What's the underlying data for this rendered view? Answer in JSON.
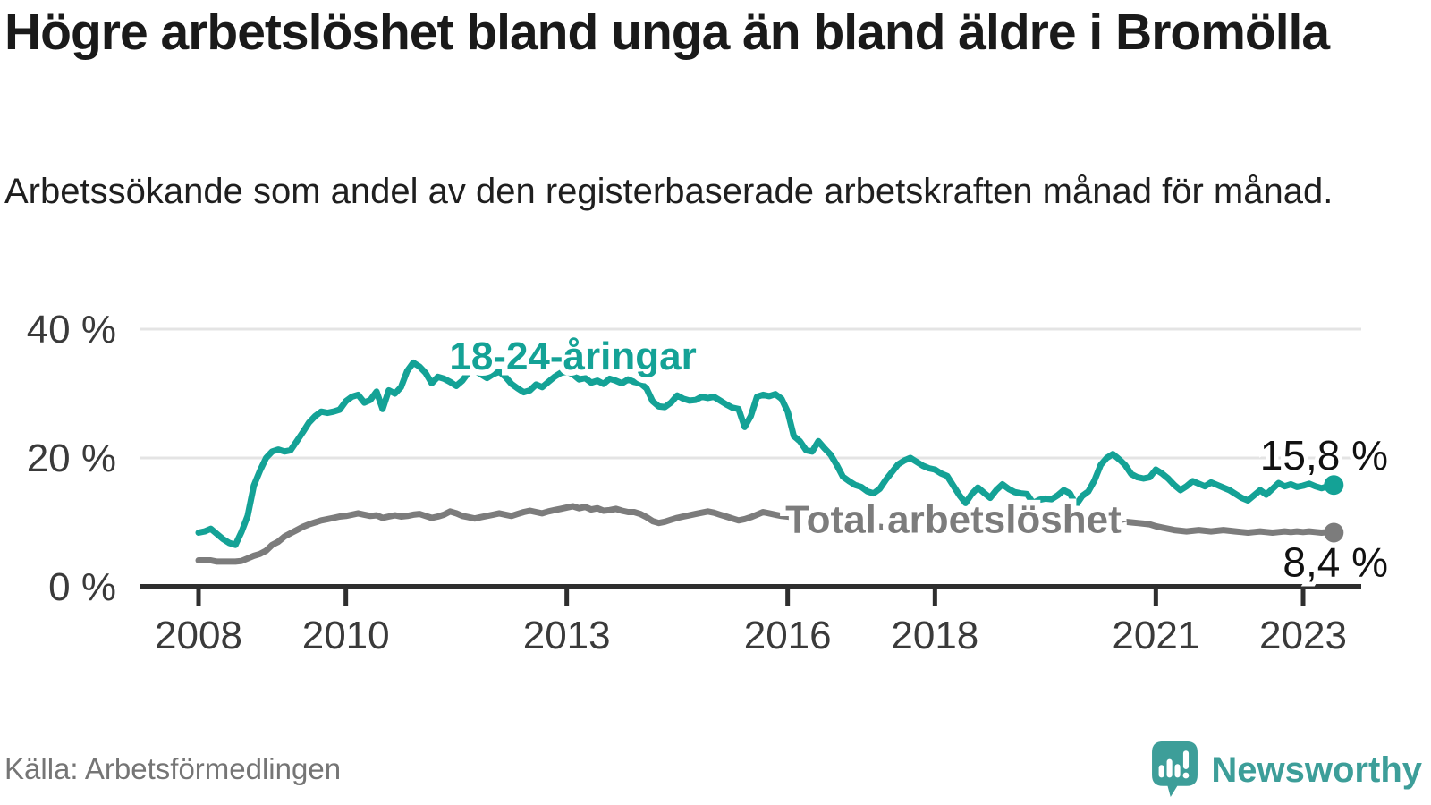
{
  "header": {
    "title": "Högre arbetslöshet bland unga än bland äldre i Bromölla",
    "subtitle": "Arbetssökande som andel av den registerbaserade arbetskraften månad för månad."
  },
  "footer": {
    "source": "Källa: Arbetsförmedlingen",
    "brand": "Newsworthy",
    "logo_icon": "newsworthy-chart-bubble-icon"
  },
  "colors": {
    "youth_line": "#14a296",
    "total_line": "#7c7c7c",
    "axis": "#2e2e2e",
    "tick_text": "#3a3a3a",
    "gridline": "#e4e4e4",
    "value_label_text": "#111111",
    "brand_teal": "#3d9e99"
  },
  "chart_data": {
    "type": "line",
    "title": "Högre arbetslöshet bland unga än bland äldre i Bromölla",
    "subtitle": "Arbetssökande som andel av den registerbaserade arbetskraften månad för månad.",
    "x_start": "2008-01",
    "x_end": "2023-06",
    "frequency": "monthly",
    "grid": "horizontal",
    "legend": "inline-labels",
    "ylim": [
      0,
      43
    ],
    "yticks": [
      {
        "value": 0,
        "label": "0 %"
      },
      {
        "value": 20,
        "label": "20 %"
      },
      {
        "value": 40,
        "label": "40 %"
      }
    ],
    "xticks": [
      {
        "label": "2008",
        "month_index": 0
      },
      {
        "label": "2010",
        "month_index": 24
      },
      {
        "label": "2013",
        "month_index": 60
      },
      {
        "label": "2016",
        "month_index": 96
      },
      {
        "label": "2018",
        "month_index": 120
      },
      {
        "label": "2021",
        "month_index": 156
      },
      {
        "label": "2023",
        "month_index": 180
      }
    ],
    "series": [
      {
        "name": "18-24-åringar",
        "color": "#14a296",
        "end_value": 15.8,
        "end_label": "15,8 %",
        "end_label_position": "above",
        "label_anchor": {
          "month_index": 61,
          "value": 35.8
        },
        "values": [
          8.4,
          8.6,
          9.0,
          8.2,
          7.4,
          6.8,
          6.5,
          8.5,
          11.0,
          15.7,
          18.0,
          20.0,
          21.0,
          21.3,
          21.0,
          21.2,
          22.6,
          24.0,
          25.5,
          26.5,
          27.2,
          27.0,
          27.2,
          27.5,
          28.8,
          29.5,
          29.8,
          28.6,
          29.0,
          30.3,
          27.6,
          30.5,
          30.0,
          31.0,
          33.5,
          34.8,
          34.2,
          33.2,
          31.6,
          32.6,
          32.3,
          31.8,
          31.2,
          32.0,
          33.3,
          33.6,
          33.0,
          32.4,
          33.0,
          33.4,
          32.6,
          31.5,
          30.8,
          30.2,
          30.5,
          31.4,
          31.0,
          31.8,
          32.6,
          33.2,
          33.4,
          33.0,
          32.2,
          32.4,
          31.7,
          32.0,
          31.5,
          32.3,
          32.0,
          31.6,
          32.2,
          31.8,
          31.6,
          30.8,
          28.8,
          28.0,
          27.9,
          28.6,
          29.7,
          29.2,
          28.9,
          29.0,
          29.5,
          29.3,
          29.5,
          28.9,
          28.3,
          27.8,
          27.6,
          24.8,
          26.5,
          29.5,
          29.8,
          29.6,
          29.9,
          29.2,
          27.2,
          23.4,
          22.6,
          21.2,
          21.0,
          22.6,
          21.5,
          20.5,
          18.9,
          17.1,
          16.4,
          15.8,
          15.5,
          14.8,
          14.5,
          15.2,
          16.6,
          17.8,
          19.0,
          19.6,
          20.0,
          19.4,
          18.8,
          18.4,
          18.2,
          17.6,
          17.2,
          15.7,
          14.2,
          13.0,
          14.4,
          15.4,
          14.6,
          13.8,
          15.0,
          15.9,
          15.2,
          14.7,
          14.5,
          14.4,
          13.0,
          13.5,
          13.7,
          13.6,
          14.2,
          15.0,
          14.5,
          12.7,
          14.1,
          14.8,
          16.5,
          18.9,
          20.0,
          20.6,
          19.8,
          18.9,
          17.5,
          17.0,
          16.8,
          17.0,
          18.2,
          17.6,
          16.8,
          15.8,
          15.0,
          15.6,
          16.4,
          16.0,
          15.6,
          16.2,
          15.8,
          15.4,
          15.0,
          14.4,
          13.8,
          13.4,
          14.2,
          15.0,
          14.3,
          15.2,
          16.1,
          15.6,
          15.9,
          15.5,
          15.7,
          16.0,
          15.6,
          15.3,
          15.6,
          15.8
        ]
      },
      {
        "name": "Total arbetslöshet",
        "color": "#7c7c7c",
        "end_value": 8.4,
        "end_label": "8,4 %",
        "end_label_position": "below",
        "label_anchor": {
          "month_index": 123,
          "value": 10.5
        },
        "values": [
          4.1,
          4.1,
          4.1,
          3.9,
          3.9,
          3.9,
          3.9,
          4.0,
          4.4,
          4.8,
          5.1,
          5.6,
          6.5,
          7.0,
          7.8,
          8.3,
          8.8,
          9.3,
          9.7,
          10.0,
          10.3,
          10.5,
          10.7,
          10.9,
          11.0,
          11.2,
          11.4,
          11.2,
          11.0,
          11.1,
          10.7,
          10.9,
          11.1,
          10.9,
          11.0,
          11.2,
          11.3,
          11.0,
          10.7,
          10.9,
          11.2,
          11.7,
          11.4,
          11.0,
          10.8,
          10.6,
          10.8,
          11.0,
          11.2,
          11.4,
          11.2,
          11.0,
          11.3,
          11.6,
          11.8,
          11.6,
          11.4,
          11.7,
          11.9,
          12.1,
          12.3,
          12.5,
          12.2,
          12.4,
          12.0,
          12.2,
          11.8,
          11.9,
          12.1,
          11.8,
          11.6,
          11.6,
          11.3,
          10.8,
          10.2,
          9.9,
          10.1,
          10.4,
          10.7,
          10.9,
          11.1,
          11.3,
          11.5,
          11.7,
          11.5,
          11.2,
          10.9,
          10.6,
          10.3,
          10.5,
          10.8,
          11.2,
          11.6,
          11.4,
          11.2,
          11.0,
          10.9,
          10.7,
          10.5,
          10.3,
          10.2,
          10.1,
          10.0,
          9.9,
          9.8,
          9.7,
          9.6,
          9.6,
          9.5,
          9.4,
          9.3,
          9.3,
          9.2,
          9.2,
          9.1,
          9.1,
          9.0,
          9.0,
          8.9,
          8.9,
          8.8,
          8.8,
          8.7,
          8.7,
          8.6,
          8.6,
          8.6,
          8.6,
          8.6,
          8.6,
          8.7,
          8.7,
          8.8,
          8.8,
          8.9,
          8.9,
          9.0,
          9.0,
          9.1,
          9.1,
          9.2,
          9.2,
          9.3,
          9.4,
          9.5,
          9.6,
          9.8,
          10.1,
          10.3,
          10.4,
          10.3,
          10.1,
          10.0,
          9.9,
          9.8,
          9.7,
          9.4,
          9.2,
          9.0,
          8.8,
          8.7,
          8.6,
          8.7,
          8.8,
          8.7,
          8.6,
          8.7,
          8.8,
          8.7,
          8.6,
          8.5,
          8.4,
          8.5,
          8.6,
          8.5,
          8.4,
          8.5,
          8.6,
          8.5,
          8.6,
          8.5,
          8.6,
          8.5,
          8.4,
          8.5,
          8.4
        ]
      }
    ]
  }
}
